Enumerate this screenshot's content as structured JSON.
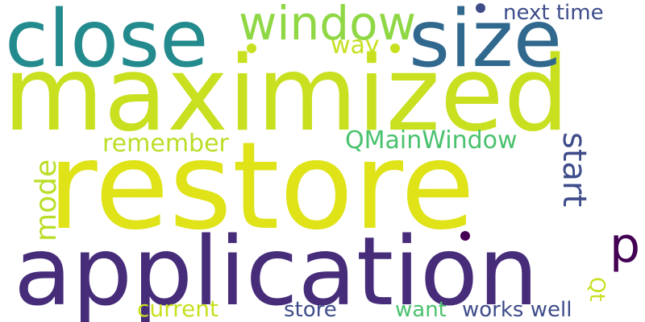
{
  "wordcloud": {
    "words": {
      "restore": {
        "text": "restore",
        "color": "#dfe318"
      },
      "maximized": {
        "text": "maximized",
        "color": "#c8e020"
      },
      "application": {
        "text": "application",
        "color": "#472c7a"
      },
      "close": {
        "text": "close",
        "color": "#238a8d"
      },
      "size": {
        "text": "size",
        "color": "#31688e"
      },
      "window": {
        "text": "window",
        "color": "#8fd744"
      },
      "start": {
        "text": "start",
        "color": "#3e4c8a"
      },
      "mode": {
        "text": "mode",
        "color": "#bade28"
      },
      "p": {
        "text": "p",
        "color": "#440154"
      },
      "qmainwindow": {
        "text": "QMainWindow",
        "color": "#4ac16d"
      },
      "remember": {
        "text": "remember",
        "color": "#bade28"
      },
      "way": {
        "text": "way",
        "color": "#c8e020"
      },
      "next_time": {
        "text": "next time",
        "color": "#3e4c8a"
      },
      "current": {
        "text": "current",
        "color": "#c8e020"
      },
      "store": {
        "text": "store",
        "color": "#3e4c8a"
      },
      "want": {
        "text": "want",
        "color": "#4ac16d"
      },
      "works_well": {
        "text": "works well",
        "color": "#3e4c8a"
      },
      "qt": {
        "text": "Qt",
        "color": "#c8e020"
      }
    },
    "dot_colors": [
      "#3e4c8a",
      "#c8e020",
      "#c8e020",
      "#440154"
    ]
  }
}
